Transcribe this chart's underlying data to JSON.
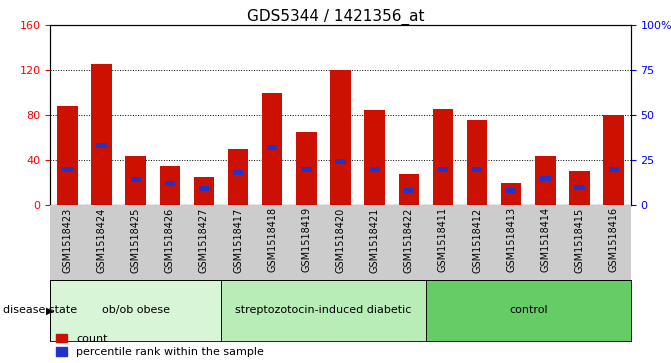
{
  "title": "GDS5344 / 1421356_at",
  "samples": [
    "GSM1518423",
    "GSM1518424",
    "GSM1518425",
    "GSM1518426",
    "GSM1518427",
    "GSM1518417",
    "GSM1518418",
    "GSM1518419",
    "GSM1518420",
    "GSM1518421",
    "GSM1518422",
    "GSM1518411",
    "GSM1518412",
    "GSM1518413",
    "GSM1518414",
    "GSM1518415",
    "GSM1518416"
  ],
  "count_values": [
    88,
    126,
    44,
    35,
    25,
    50,
    100,
    65,
    120,
    85,
    28,
    86,
    76,
    20,
    44,
    30,
    80
  ],
  "percentile_values": [
    20,
    33,
    14,
    12,
    9,
    18,
    32,
    20,
    24,
    20,
    8,
    20,
    20,
    8,
    15,
    10,
    20
  ],
  "groups": [
    {
      "label": "ob/ob obese",
      "start": 0,
      "end": 5,
      "color": "#d8f5d8"
    },
    {
      "label": "streptozotocin-induced diabetic",
      "start": 5,
      "end": 11,
      "color": "#b8edb8"
    },
    {
      "label": "control",
      "start": 11,
      "end": 17,
      "color": "#66cc66"
    }
  ],
  "left_ylim": [
    0,
    160
  ],
  "left_yticks": [
    0,
    40,
    80,
    120,
    160
  ],
  "right_ylim": [
    0,
    100
  ],
  "right_yticks": [
    0,
    25,
    50,
    75,
    100
  ],
  "right_yticklabels": [
    "0",
    "25",
    "50",
    "75",
    "100%"
  ],
  "bar_color": "#cc1100",
  "percentile_color": "#2233cc",
  "tick_bg_color": "#cccccc",
  "title_fontsize": 11,
  "tick_fontsize": 7,
  "label_fontsize": 8
}
